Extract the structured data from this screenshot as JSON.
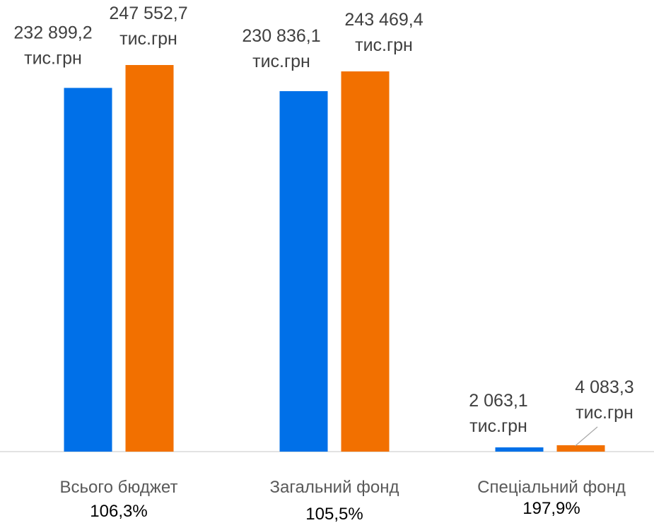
{
  "chart_data": {
    "type": "bar",
    "categories": [
      "Всього бюджет",
      "Загальний фонд",
      "Спеціальний фонд"
    ],
    "category_percentages": [
      "106,3%",
      "105,5%",
      "197,9%"
    ],
    "unit_label": "тис.грн",
    "series": [
      {
        "color": "#0070e8",
        "values": [
          232899.2,
          230836.1,
          2063.1
        ],
        "value_labels": [
          "232 899,2",
          "230 836,1",
          "2 063,1"
        ]
      },
      {
        "color": "#f27000",
        "values": [
          247552.7,
          243469.4,
          4083.3
        ],
        "value_labels": [
          "247 552,7",
          "243 469,4",
          "4 083,3"
        ]
      }
    ],
    "ylim": [
      0,
      247552.7
    ],
    "grid": false,
    "legend": "none",
    "axis_line_color": "#d9d9d9",
    "leader_line_color": "#a6a6a6"
  }
}
